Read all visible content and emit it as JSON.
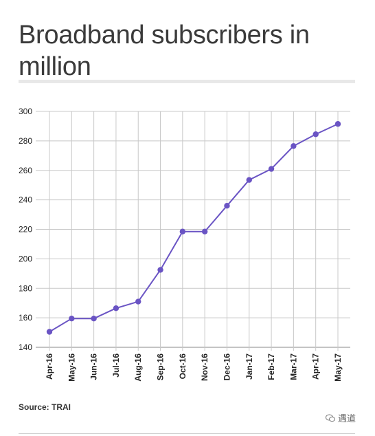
{
  "header": {
    "title": "Broadband subscribers in million"
  },
  "footer": {
    "source": "Source: TRAI",
    "watermark": "遇道"
  },
  "colors": {
    "line": "#6a54c4",
    "point": "#6a54c4",
    "grid": "#c8c8c8",
    "axis": "#888888"
  },
  "chart_data": {
    "type": "line",
    "title": "Broadband subscribers in million",
    "categories": [
      "Apr-16",
      "May-16",
      "Jun-16",
      "Jul-16",
      "Aug-16",
      "Sep-16",
      "Oct-16",
      "Nov-16",
      "Dec-16",
      "Jan-17",
      "Feb-17",
      "Mar-17",
      "Apr-17",
      "May-17"
    ],
    "series": [
      {
        "values": [
          150.5,
          159.5,
          159.5,
          166.5,
          171,
          192.5,
          218.5,
          218.5,
          236,
          253.5,
          261,
          276.5,
          284.5,
          291.5
        ]
      }
    ],
    "ylim": [
      140,
      300
    ],
    "yticks": [
      140,
      160,
      180,
      200,
      220,
      240,
      260,
      280,
      300
    ],
    "xlabel": "",
    "ylabel": "",
    "grid": true,
    "legend": "none"
  }
}
